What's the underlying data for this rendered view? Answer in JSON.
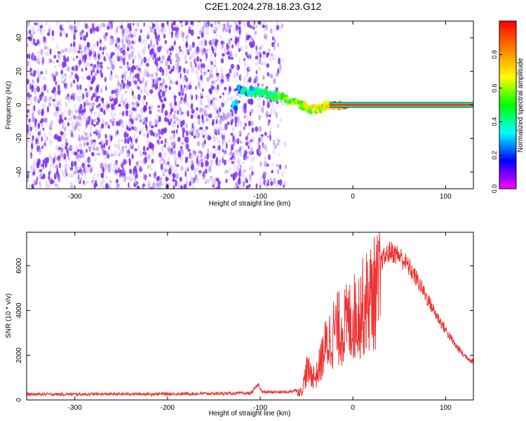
{
  "page": {
    "title": "C2E1.2024.278.18.23.G12"
  },
  "chart_data": [
    {
      "type": "heatmap",
      "id": "spectrogram",
      "title": "C2E1.2024.278.18.23.G12",
      "xlabel": "Height of straight line (km)",
      "ylabel": "Frequency (Hz)",
      "xlim": [
        -352,
        130
      ],
      "ylim": [
        -50,
        50
      ],
      "xticks": [
        -300,
        -200,
        -100,
        0,
        100
      ],
      "yticks": [
        -40,
        -20,
        0,
        20,
        40
      ],
      "colorbar": {
        "label": "Normalized spectral amplitude",
        "range": [
          0.0,
          1.0
        ],
        "ticks": [
          0.0,
          0.2,
          0.4,
          0.6,
          0.8
        ],
        "tick_labels": [
          "0.0",
          "0.2",
          "0.4",
          "0.6",
          "0.8"
        ],
        "colormap": [
          "#ff00ff",
          "#0000ff",
          "#00ffff",
          "#00ff00",
          "#ffff00",
          "#ff8000",
          "#ff0000"
        ]
      },
      "noise_region_x": [
        -352,
        -72
      ],
      "low_amplitude_color": "#7b2cf0",
      "signal_track": [
        {
          "x": -125,
          "y": 9
        },
        {
          "x": -110,
          "y": 8
        },
        {
          "x": -95,
          "y": 7
        },
        {
          "x": -75,
          "y": 4
        },
        {
          "x": -60,
          "y": 1
        },
        {
          "x": -45,
          "y": -3
        },
        {
          "x": -30,
          "y": -1
        },
        {
          "x": -15,
          "y": 0
        },
        {
          "x": 0,
          "y": 0
        },
        {
          "x": 130,
          "y": 0
        }
      ],
      "carrier_frequency": 0
    },
    {
      "type": "line",
      "id": "snr",
      "xlabel": "Height of straight line (km)",
      "ylabel": "SNR (10 * v/v)",
      "xlim": [
        -352,
        130
      ],
      "ylim": [
        0,
        7500
      ],
      "xticks": [
        -300,
        -200,
        -100,
        0,
        100
      ],
      "yticks": [
        0,
        2000,
        4000,
        6000
      ],
      "color": "#ee3333",
      "envelope": [
        {
          "x": -352,
          "y": 250
        },
        {
          "x": -200,
          "y": 270
        },
        {
          "x": -110,
          "y": 300
        },
        {
          "x": -102,
          "y": 700
        },
        {
          "x": -98,
          "y": 350
        },
        {
          "x": -70,
          "y": 350
        },
        {
          "x": -55,
          "y": 500
        },
        {
          "x": -50,
          "y": 1700
        },
        {
          "x": -40,
          "y": 1300
        },
        {
          "x": -30,
          "y": 3000
        },
        {
          "x": -20,
          "y": 4000
        },
        {
          "x": -10,
          "y": 4200
        },
        {
          "x": 0,
          "y": 4700
        },
        {
          "x": 10,
          "y": 5300
        },
        {
          "x": 20,
          "y": 6000
        },
        {
          "x": 30,
          "y": 6500
        },
        {
          "x": 40,
          "y": 7000
        },
        {
          "x": 50,
          "y": 6800
        },
        {
          "x": 60,
          "y": 6300
        },
        {
          "x": 70,
          "y": 5600
        },
        {
          "x": 80,
          "y": 4800
        },
        {
          "x": 90,
          "y": 4000
        },
        {
          "x": 100,
          "y": 3300
        },
        {
          "x": 110,
          "y": 2600
        },
        {
          "x": 120,
          "y": 2100
        },
        {
          "x": 130,
          "y": 1800
        }
      ]
    }
  ]
}
